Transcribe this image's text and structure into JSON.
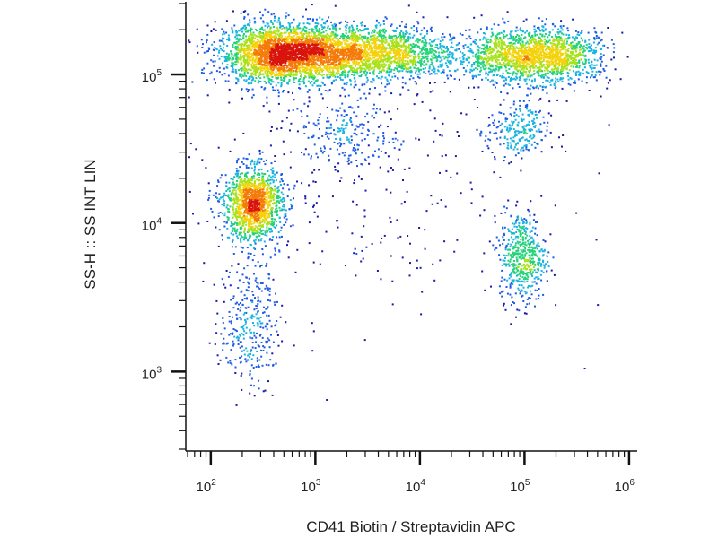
{
  "chart_data": {
    "type": "scatter",
    "title": "",
    "xlabel": "CD41 Biotin / Streptavidin APC",
    "ylabel": "SS-H :: SS INT LIN",
    "x_scale": "log",
    "y_scale": "log",
    "xlim": [
      60,
      1150000
    ],
    "ylim": [
      300,
      300000
    ],
    "x_ticks": [
      {
        "base": "10",
        "exp": "2",
        "value": 100
      },
      {
        "base": "10",
        "exp": "3",
        "value": 1000
      },
      {
        "base": "10",
        "exp": "4",
        "value": 10000
      },
      {
        "base": "10",
        "exp": "5",
        "value": 100000
      },
      {
        "base": "10",
        "exp": "6",
        "value": 1000000
      }
    ],
    "y_ticks": [
      {
        "base": "10",
        "exp": "3",
        "value": 1000
      },
      {
        "base": "10",
        "exp": "4",
        "value": 10000
      },
      {
        "base": "10",
        "exp": "5",
        "value": 100000
      }
    ],
    "grid": false,
    "legend": "none",
    "density_colors": [
      "#1a1aa8",
      "#1f5ce6",
      "#19b4e0",
      "#24d27a",
      "#a9e21c",
      "#f4d20c",
      "#f47b0a",
      "#d8140c"
    ],
    "populations": [
      {
        "x": 420,
        "y": 140000,
        "sx": 0.28,
        "sy": 0.1,
        "n": 2000
      },
      {
        "x": 1400,
        "y": 140000,
        "sx": 0.35,
        "sy": 0.09,
        "n": 1700
      },
      {
        "x": 6000,
        "y": 140000,
        "sx": 0.3,
        "sy": 0.09,
        "n": 900
      },
      {
        "x": 90000,
        "y": 135000,
        "sx": 0.3,
        "sy": 0.09,
        "n": 1300
      },
      {
        "x": 240000,
        "y": 135000,
        "sx": 0.22,
        "sy": 0.09,
        "n": 500
      },
      {
        "x": 250,
        "y": 13500,
        "sx": 0.14,
        "sy": 0.12,
        "n": 1400
      },
      {
        "x": 230,
        "y": 2200,
        "sx": 0.14,
        "sy": 0.22,
        "n": 330
      },
      {
        "x": 2000,
        "y": 40000,
        "sx": 0.25,
        "sy": 0.13,
        "n": 220
      },
      {
        "x": 85000,
        "y": 42000,
        "sx": 0.15,
        "sy": 0.1,
        "n": 240
      },
      {
        "x": 95000,
        "y": 6000,
        "sx": 0.11,
        "sy": 0.15,
        "n": 520
      },
      {
        "x": 2000,
        "y": 20000,
        "sx": 1.0,
        "sy": 0.5,
        "n": 300
      }
    ]
  }
}
